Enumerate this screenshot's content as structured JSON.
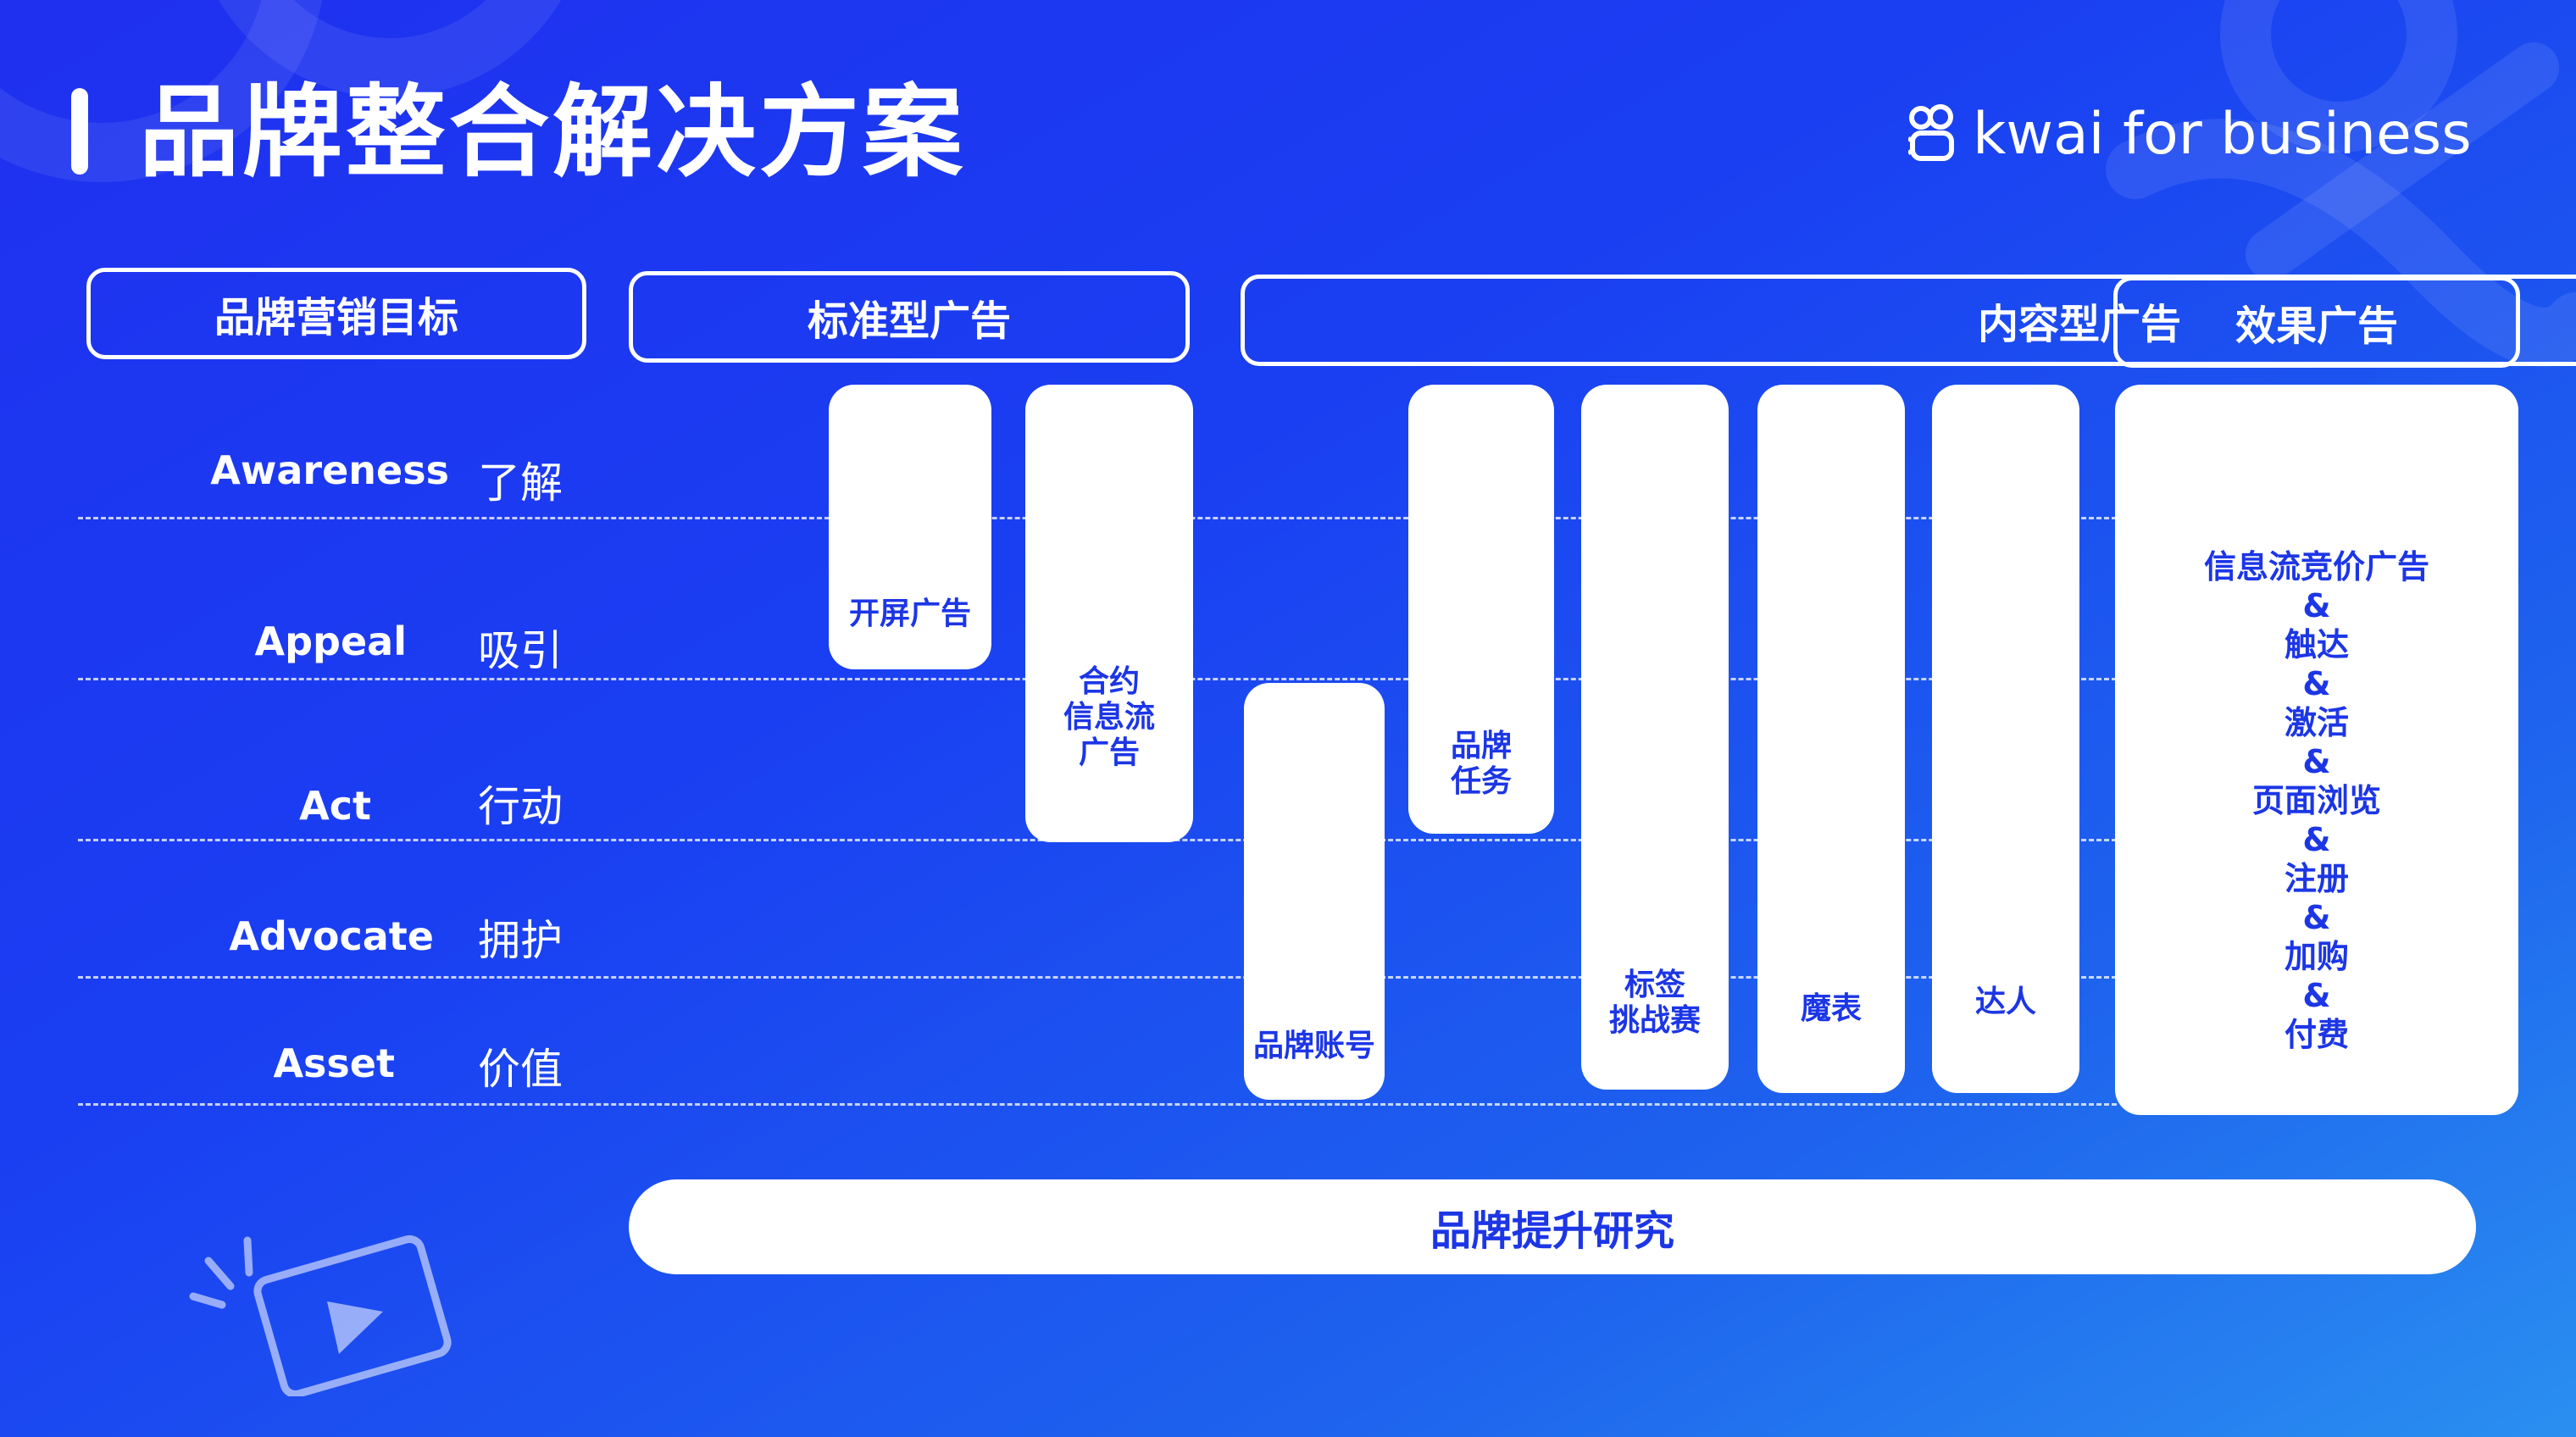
{
  "title": "品牌整合解决方案",
  "logo": {
    "text": "kwai for business",
    "icon": "kwai-logo-icon"
  },
  "columns": {
    "goal": "品牌营销目标",
    "standard": "标准型广告",
    "content": "内容型广告",
    "performance": "效果广告"
  },
  "rows": [
    {
      "en": "Awareness",
      "cn": "了解"
    },
    {
      "en": "Appeal",
      "cn": "吸引"
    },
    {
      "en": "Act",
      "cn": "行动"
    },
    {
      "en": "Advocate",
      "cn": "拥护"
    },
    {
      "en": "Asset",
      "cn": "价值"
    }
  ],
  "standard_ads": {
    "splash": "开屏广告",
    "contract_feed": "合约\n信息流\n广告"
  },
  "content_ads": {
    "brand_account": "品牌账号",
    "brand_task": "品牌\n任务",
    "hashtag_challenge": "标签\n挑战赛",
    "magic_face": "魔表",
    "influencer": "达人"
  },
  "performance_ads": {
    "lines": [
      "信息流竞价广告",
      "&",
      "触达",
      "&",
      "激活",
      "&",
      "页面浏览",
      "&",
      "注册",
      "&",
      "加购",
      "&",
      "付费"
    ]
  },
  "bottom": "品牌提升研究",
  "decor_icon": "video-play-icon"
}
